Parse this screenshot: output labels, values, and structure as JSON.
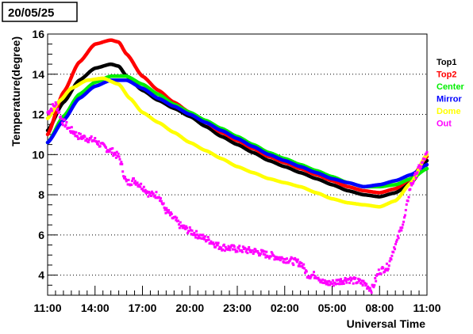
{
  "chart_data": {
    "type": "scatter",
    "title": "20/05/25",
    "xlabel": "Universal Time",
    "ylabel": "Temperature(degree)",
    "xlim": [
      0,
      24
    ],
    "ylim": [
      3,
      16
    ],
    "x_ticks": [
      {
        "v": 0,
        "label": "11:00"
      },
      {
        "v": 3,
        "label": "14:00"
      },
      {
        "v": 6,
        "label": "17:00"
      },
      {
        "v": 9,
        "label": "20:00"
      },
      {
        "v": 12,
        "label": "23:00"
      },
      {
        "v": 15,
        "label": "02:00"
      },
      {
        "v": 18,
        "label": "05:00"
      },
      {
        "v": 21,
        "label": "08:00"
      },
      {
        "v": 24,
        "label": "11:00"
      }
    ],
    "y_ticks": [
      {
        "v": 4,
        "label": "4"
      },
      {
        "v": 6,
        "label": "6"
      },
      {
        "v": 8,
        "label": "8"
      },
      {
        "v": 10,
        "label": "10"
      },
      {
        "v": 12,
        "label": "12"
      },
      {
        "v": 14,
        "label": "14"
      },
      {
        "v": 16,
        "label": "16"
      }
    ],
    "grid": "horizontal-dotted",
    "legend_position": "right",
    "x_unit": "hours since 11:00 UT",
    "series": [
      {
        "name": "Top1",
        "color": "#000000",
        "points": [
          [
            0,
            11.2
          ],
          [
            1,
            12.6
          ],
          [
            2,
            13.7
          ],
          [
            3,
            14.3
          ],
          [
            4,
            14.5
          ],
          [
            4.5,
            14.4
          ],
          [
            5,
            13.9
          ],
          [
            6,
            13.2
          ],
          [
            7,
            12.7
          ],
          [
            8,
            12.3
          ],
          [
            9,
            11.9
          ],
          [
            10,
            11.4
          ],
          [
            11,
            10.9
          ],
          [
            12,
            10.5
          ],
          [
            13,
            10.1
          ],
          [
            14,
            9.7
          ],
          [
            15,
            9.4
          ],
          [
            16,
            9.1
          ],
          [
            17,
            8.8
          ],
          [
            18,
            8.5
          ],
          [
            19,
            8.2
          ],
          [
            20,
            8.0
          ],
          [
            21,
            7.9
          ],
          [
            22,
            8.1
          ],
          [
            23,
            8.6
          ],
          [
            24,
            9.7
          ]
        ]
      },
      {
        "name": "Top2",
        "color": "#ff0000",
        "points": [
          [
            0,
            11.0
          ],
          [
            1,
            13.1
          ],
          [
            2,
            14.6
          ],
          [
            3,
            15.5
          ],
          [
            4,
            15.7
          ],
          [
            4.5,
            15.6
          ],
          [
            5,
            15.0
          ],
          [
            6,
            13.9
          ],
          [
            7,
            13.2
          ],
          [
            8,
            12.6
          ],
          [
            9,
            12.1
          ],
          [
            10,
            11.6
          ],
          [
            11,
            11.1
          ],
          [
            12,
            10.7
          ],
          [
            13,
            10.3
          ],
          [
            14,
            9.9
          ],
          [
            15,
            9.6
          ],
          [
            16,
            9.3
          ],
          [
            17,
            9.0
          ],
          [
            18,
            8.7
          ],
          [
            19,
            8.4
          ],
          [
            20,
            8.2
          ],
          [
            21,
            8.1
          ],
          [
            22,
            8.3
          ],
          [
            23,
            8.8
          ],
          [
            24,
            9.9
          ]
        ]
      },
      {
        "name": "Center",
        "color": "#00ee00",
        "points": [
          [
            0,
            10.6
          ],
          [
            1,
            11.9
          ],
          [
            2,
            13.0
          ],
          [
            3,
            13.6
          ],
          [
            4,
            13.9
          ],
          [
            5,
            13.9
          ],
          [
            6,
            13.5
          ],
          [
            7,
            13.0
          ],
          [
            8,
            12.5
          ],
          [
            9,
            12.1
          ],
          [
            10,
            11.7
          ],
          [
            11,
            11.3
          ],
          [
            12,
            10.9
          ],
          [
            13,
            10.5
          ],
          [
            14,
            10.1
          ],
          [
            15,
            9.8
          ],
          [
            16,
            9.5
          ],
          [
            17,
            9.2
          ],
          [
            18,
            8.9
          ],
          [
            19,
            8.6
          ],
          [
            20,
            8.4
          ],
          [
            21,
            8.4
          ],
          [
            22,
            8.5
          ],
          [
            23,
            8.8
          ],
          [
            24,
            9.3
          ]
        ]
      },
      {
        "name": "Mirror",
        "color": "#0000ff",
        "points": [
          [
            0,
            10.6
          ],
          [
            1,
            11.7
          ],
          [
            2,
            12.8
          ],
          [
            3,
            13.4
          ],
          [
            4,
            13.7
          ],
          [
            5,
            13.7
          ],
          [
            6,
            13.3
          ],
          [
            7,
            12.8
          ],
          [
            8,
            12.4
          ],
          [
            9,
            12.0
          ],
          [
            10,
            11.6
          ],
          [
            11,
            11.2
          ],
          [
            12,
            10.8
          ],
          [
            13,
            10.4
          ],
          [
            14,
            10.0
          ],
          [
            15,
            9.7
          ],
          [
            16,
            9.4
          ],
          [
            17,
            9.1
          ],
          [
            18,
            8.8
          ],
          [
            19,
            8.6
          ],
          [
            20,
            8.4
          ],
          [
            21,
            8.5
          ],
          [
            22,
            8.7
          ],
          [
            23,
            9.0
          ],
          [
            24,
            9.5
          ]
        ]
      },
      {
        "name": "Dome",
        "color": "#ffff00",
        "points": [
          [
            0,
            11.8
          ],
          [
            0.8,
            12.7
          ],
          [
            1.5,
            13.3
          ],
          [
            2.5,
            13.7
          ],
          [
            3.5,
            13.8
          ],
          [
            4.5,
            13.5
          ],
          [
            5.2,
            12.8
          ],
          [
            6,
            12.1
          ],
          [
            7,
            11.6
          ],
          [
            8,
            11.1
          ],
          [
            9,
            10.6
          ],
          [
            10,
            10.2
          ],
          [
            11,
            9.8
          ],
          [
            12,
            9.4
          ],
          [
            13,
            9.1
          ],
          [
            14,
            8.8
          ],
          [
            15,
            8.6
          ],
          [
            16,
            8.4
          ],
          [
            17,
            8.1
          ],
          [
            18,
            7.8
          ],
          [
            19,
            7.6
          ],
          [
            20,
            7.5
          ],
          [
            21,
            7.4
          ],
          [
            22,
            7.7
          ],
          [
            23,
            8.6
          ],
          [
            24,
            10.0
          ]
        ]
      },
      {
        "name": "Out",
        "color": "#ff00ff",
        "points": [
          [
            0,
            12.1
          ],
          [
            0.5,
            12.5
          ],
          [
            1,
            11.6
          ],
          [
            1.5,
            11.2
          ],
          [
            2,
            10.9
          ],
          [
            3,
            10.7
          ],
          [
            3.5,
            10.4
          ],
          [
            4,
            10.2
          ],
          [
            4.5,
            9.9
          ],
          [
            5,
            8.6
          ],
          [
            5.5,
            8.7
          ],
          [
            6,
            8.4
          ],
          [
            6.5,
            8.0
          ],
          [
            7,
            8.0
          ],
          [
            7.5,
            7.2
          ],
          [
            8,
            6.8
          ],
          [
            8.5,
            6.4
          ],
          [
            9,
            6.2
          ],
          [
            9.5,
            6.0
          ],
          [
            10,
            5.8
          ],
          [
            11,
            5.4
          ],
          [
            12,
            5.3
          ],
          [
            13,
            5.2
          ],
          [
            14,
            5.0
          ],
          [
            15,
            4.8
          ],
          [
            16,
            4.6
          ],
          [
            16.5,
            4.0
          ],
          [
            17,
            4.0
          ],
          [
            17.5,
            3.6
          ],
          [
            18,
            3.6
          ],
          [
            18.5,
            3.7
          ],
          [
            19,
            3.8
          ],
          [
            19.5,
            3.7
          ],
          [
            20,
            3.6
          ],
          [
            20.5,
            3.3
          ],
          [
            21,
            4.2
          ],
          [
            21.5,
            4.4
          ],
          [
            22,
            5.5
          ],
          [
            22.5,
            6.6
          ],
          [
            23,
            8.5
          ],
          [
            23.5,
            9.3
          ],
          [
            24,
            10.0
          ]
        ]
      }
    ]
  }
}
